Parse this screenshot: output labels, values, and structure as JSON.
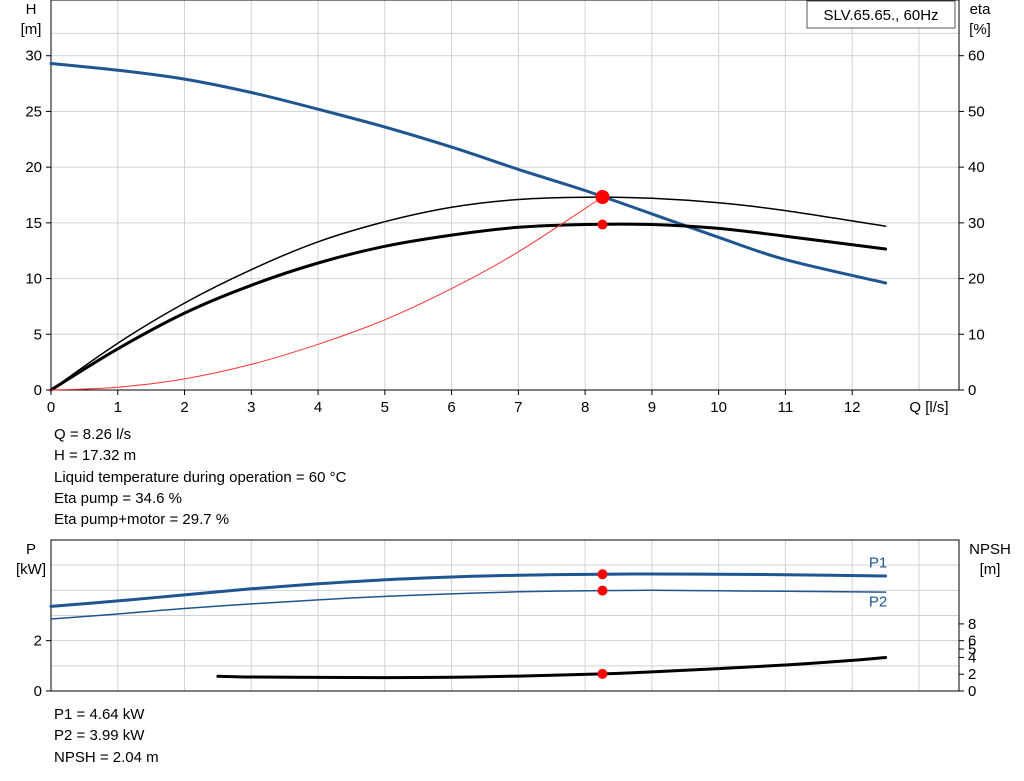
{
  "chart_data": [
    {
      "type": "line",
      "title": "SLV.65.65., 60Hz",
      "xlabel": "Q [l/s]",
      "ylabel_left": [
        "H",
        "[m]"
      ],
      "ylabel_right": [
        "eta",
        "[%]"
      ],
      "xlim": [
        0,
        13.6
      ],
      "ylim_left": [
        0,
        35
      ],
      "ylim_right": [
        0,
        70
      ],
      "x_ticks": [
        "0",
        "1",
        "2",
        "3",
        "4",
        "5",
        "6",
        "7",
        "8",
        "9",
        "10",
        "11",
        "12"
      ],
      "y_ticks_left": [
        "0",
        "5",
        "10",
        "15",
        "20",
        "25",
        "30"
      ],
      "y_ticks_right": [
        "0",
        "10",
        "20",
        "30",
        "40",
        "50",
        "60"
      ],
      "grid": true,
      "series": [
        {
          "axis": "left",
          "color": "#1f5591",
          "width": 3,
          "points": [
            [
              0,
              29.3
            ],
            [
              1,
              28.7
            ],
            [
              2,
              27.9
            ],
            [
              3,
              26.7
            ],
            [
              4,
              25.2
            ],
            [
              5,
              23.6
            ],
            [
              6,
              21.8
            ],
            [
              7,
              19.8
            ],
            [
              8,
              17.9
            ],
            [
              9,
              15.8
            ],
            [
              10,
              13.7
            ],
            [
              11,
              11.7
            ],
            [
              12.5,
              9.6
            ]
          ]
        },
        {
          "axis": "right",
          "color": "#000000",
          "width": 1.5,
          "points": [
            [
              0,
              0
            ],
            [
              1,
              8.4
            ],
            [
              2,
              15.6
            ],
            [
              3,
              21.6
            ],
            [
              4,
              26.6
            ],
            [
              5,
              30.2
            ],
            [
              6,
              32.8
            ],
            [
              7,
              34.2
            ],
            [
              8,
              34.6
            ],
            [
              9,
              34.4
            ],
            [
              10,
              33.6
            ],
            [
              11,
              32.2
            ],
            [
              12.5,
              29.4
            ]
          ]
        },
        {
          "axis": "right",
          "color": "#000000",
          "width": 3,
          "points": [
            [
              0,
              0
            ],
            [
              1,
              7.4
            ],
            [
              2,
              13.8
            ],
            [
              3,
              18.8
            ],
            [
              4,
              22.8
            ],
            [
              5,
              25.8
            ],
            [
              6,
              27.8
            ],
            [
              7,
              29.2
            ],
            [
              8,
              29.7
            ],
            [
              9,
              29.7
            ],
            [
              10,
              29.0
            ],
            [
              11,
              27.6
            ],
            [
              12.5,
              25.3
            ]
          ]
        },
        {
          "axis": "left",
          "color": "#ff3333",
          "width": 1,
          "points": [
            [
              0,
              0
            ],
            [
              1,
              0.25
            ],
            [
              2,
              1
            ],
            [
              3,
              2.3
            ],
            [
              4,
              4.1
            ],
            [
              5,
              6.3
            ],
            [
              6,
              9.1
            ],
            [
              7,
              12.4
            ],
            [
              8.26,
              17.32
            ]
          ]
        }
      ],
      "operating_points": [
        {
          "axis": "left",
          "x": 8.26,
          "y": 17.32,
          "r": 7
        },
        {
          "axis": "right",
          "x": 8.26,
          "y": 29.7,
          "r": 5
        }
      ]
    },
    {
      "type": "line",
      "ylabel_left": [
        "P",
        "[kW]"
      ],
      "ylabel_right": [
        "NPSH",
        "[m]"
      ],
      "xlim": [
        0,
        13.6
      ],
      "ylim_left": [
        0,
        6
      ],
      "ylim_right": [
        0,
        18
      ],
      "y_ticks_left": [
        "0",
        "2"
      ],
      "y_ticks_right": [
        "0",
        "2",
        "4",
        "5",
        "6",
        "8"
      ],
      "grid": true,
      "series": [
        {
          "name": "P1",
          "axis": "left",
          "color": "#1f5591",
          "width": 3,
          "points": [
            [
              0,
              3.36
            ],
            [
              1,
              3.58
            ],
            [
              2,
              3.82
            ],
            [
              3,
              4.06
            ],
            [
              4,
              4.26
            ],
            [
              5,
              4.42
            ],
            [
              6,
              4.53
            ],
            [
              7,
              4.6
            ],
            [
              8.26,
              4.64
            ],
            [
              9,
              4.65
            ],
            [
              10,
              4.64
            ],
            [
              11,
              4.62
            ],
            [
              12.5,
              4.57
            ]
          ]
        },
        {
          "name": "P2",
          "axis": "left",
          "color": "#1f5591",
          "width": 1.5,
          "points": [
            [
              0,
              2.86
            ],
            [
              1,
              3.06
            ],
            [
              2,
              3.28
            ],
            [
              3,
              3.46
            ],
            [
              4,
              3.62
            ],
            [
              5,
              3.76
            ],
            [
              6,
              3.86
            ],
            [
              7,
              3.94
            ],
            [
              8.26,
              3.99
            ],
            [
              9,
              4.0
            ],
            [
              10,
              3.98
            ],
            [
              11,
              3.96
            ],
            [
              12.5,
              3.93
            ]
          ]
        },
        {
          "axis": "right",
          "color": "#000000",
          "width": 3,
          "points": [
            [
              2.5,
              1.75
            ],
            [
              3,
              1.67
            ],
            [
              4,
              1.62
            ],
            [
              5,
              1.6
            ],
            [
              6,
              1.64
            ],
            [
              7,
              1.78
            ],
            [
              8.26,
              2.04
            ],
            [
              9,
              2.28
            ],
            [
              10,
              2.67
            ],
            [
              11,
              3.1
            ],
            [
              12,
              3.65
            ],
            [
              12.5,
              3.99
            ]
          ]
        }
      ],
      "series_labels": [
        {
          "text": "P1",
          "x": 12.4,
          "y": 5.1
        },
        {
          "text": "P2",
          "x": 12.4,
          "y": 3.55
        }
      ],
      "operating_points": [
        {
          "axis": "left",
          "x": 8.26,
          "y": 4.64,
          "r": 5
        },
        {
          "axis": "left",
          "x": 8.26,
          "y": 3.99,
          "r": 5
        },
        {
          "axis": "right",
          "x": 8.26,
          "y": 2.04,
          "r": 5
        }
      ]
    }
  ],
  "readout_top": [
    "Q = 8.26 l/s",
    "H = 17.32 m",
    "Liquid temperature during operation = 60 °C",
    "Eta pump = 34.6 %",
    "Eta pump+motor = 29.7 %"
  ],
  "readout_bottom": [
    "P1 = 4.64 kW",
    "P2 = 3.99 kW",
    "NPSH = 2.04 m"
  ]
}
